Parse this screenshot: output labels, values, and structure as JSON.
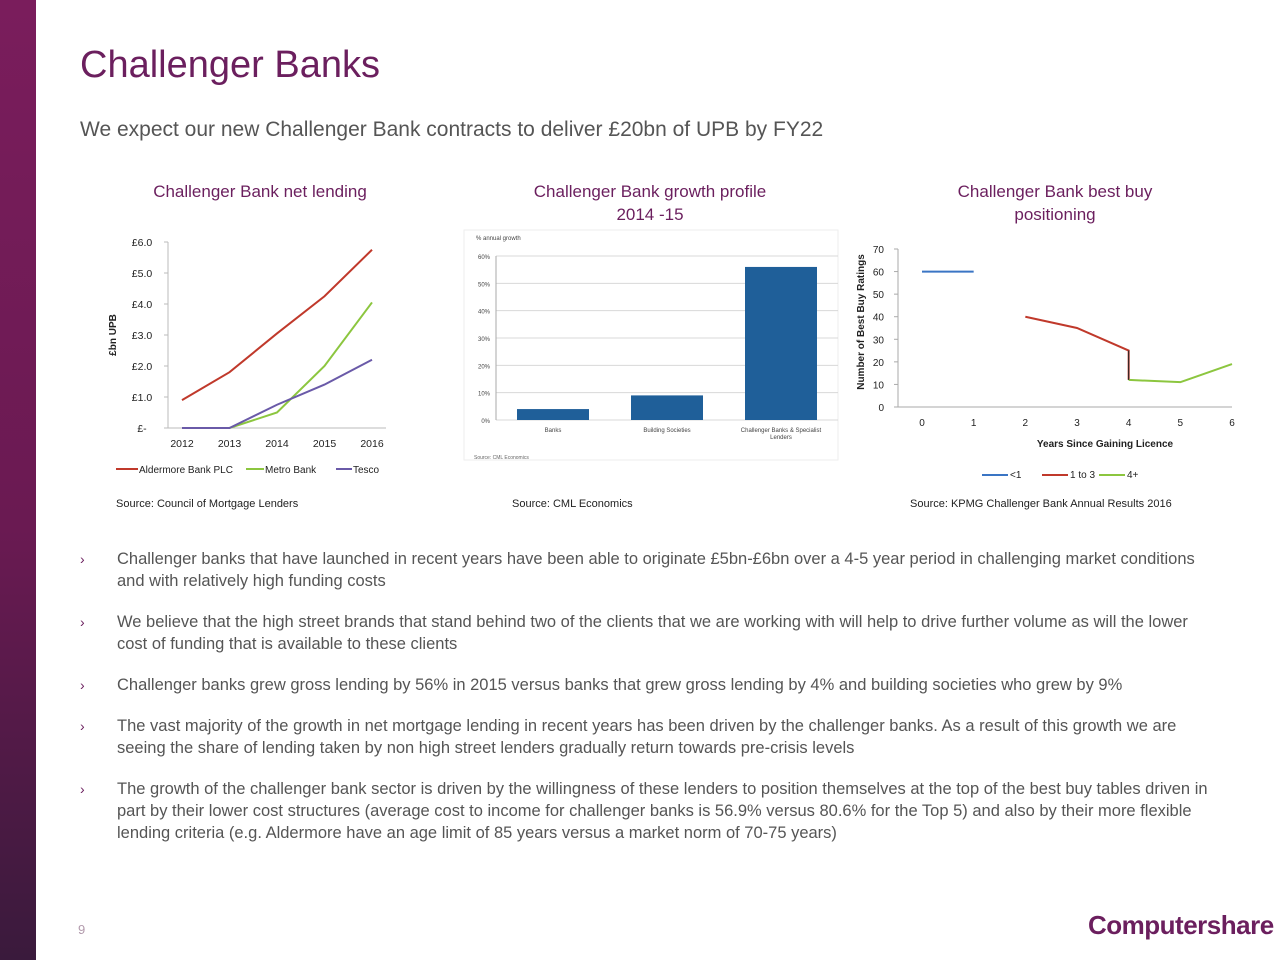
{
  "slide": {
    "title": "Challenger Banks",
    "subtitle": "We expect our new Challenger Bank contracts to deliver £20bn of UPB by FY22",
    "page_number": "9",
    "logo_text": "Computershare",
    "accent_color": "#6b1f5e"
  },
  "charts": {
    "net_lending": {
      "heading": "Challenger Bank net lending",
      "source": "Source: Council of Mortgage Lenders"
    },
    "growth_profile": {
      "heading_line1": "Challenger Bank growth profile",
      "heading_line2": "2014 -15",
      "source": "Source: CML Economics",
      "inner_source": "Source: CML Economics"
    },
    "best_buy": {
      "heading_line1": "Challenger Bank best buy",
      "heading_line2": "positioning",
      "source": "Source: KPMG Challenger Bank Annual Results 2016"
    }
  },
  "chart_data": [
    {
      "type": "line",
      "ylabel": "£bn UPB",
      "x": [
        "2012",
        "2013",
        "2014",
        "2015",
        "2016"
      ],
      "yticks": [
        "£-",
        "£1.0",
        "£2.0",
        "£3.0",
        "£4.0",
        "£5.0",
        "£6.0"
      ],
      "ylim": [
        0,
        6
      ],
      "legend_position": "bottom",
      "series": [
        {
          "name": "Aldermore Bank PLC",
          "color": "#c0392b",
          "values": [
            0.9,
            1.8,
            3.05,
            4.25,
            5.75
          ]
        },
        {
          "name": "Metro Bank",
          "color": "#8cc63f",
          "values": [
            0,
            0,
            0.5,
            2.0,
            4.05
          ]
        },
        {
          "name": "Tesco",
          "color": "#6a5aa8",
          "values": [
            0,
            0,
            0.75,
            1.4,
            2.2
          ]
        }
      ]
    },
    {
      "type": "bar",
      "ylabel": "% annual growth",
      "categories": [
        "Banks",
        "Building Societies",
        "Challenger Banks & Specialist Lenders"
      ],
      "values": [
        4,
        9,
        56
      ],
      "yticks": [
        "0%",
        "10%",
        "20%",
        "30%",
        "40%",
        "50%",
        "60%"
      ],
      "ylim": [
        0,
        60
      ],
      "color": "#1f5f99"
    },
    {
      "type": "line",
      "xlabel": "Years Since Gaining Licence",
      "ylabel": "Number of Best Buy Ratings",
      "xticks": [
        "0",
        "1",
        "2",
        "3",
        "4",
        "5",
        "6"
      ],
      "yticks": [
        "0",
        "10",
        "20",
        "30",
        "40",
        "50",
        "60",
        "70"
      ],
      "xlim": [
        0,
        6
      ],
      "ylim": [
        0,
        70
      ],
      "legend_position": "bottom",
      "series": [
        {
          "name": "<1",
          "color": "#3a75c4",
          "points": [
            [
              0,
              60
            ],
            [
              1,
              60
            ]
          ]
        },
        {
          "name": "1 to 3",
          "color": "#c0392b",
          "points": [
            [
              2,
              40
            ],
            [
              3,
              35
            ],
            [
              4,
              25
            ],
            [
              4,
              12
            ]
          ]
        },
        {
          "name": "4+",
          "color": "#8cc63f",
          "points": [
            [
              4,
              12
            ],
            [
              5,
              11
            ],
            [
              6,
              19
            ]
          ]
        }
      ]
    }
  ],
  "bullets": [
    {
      "marker": "›",
      "text": "Challenger banks that have launched in recent years have been able to originate £5bn-£6bn over a 4-5 year period in challenging market conditions and with relatively high funding costs"
    },
    {
      "marker": "›",
      "text": "We believe that the high street brands that stand behind two of the clients that we are working with will help to drive further volume as will the lower cost of funding that is available to these clients"
    },
    {
      "marker": "›",
      "text": "Challenger banks grew gross lending by 56% in 2015 versus banks that grew gross lending by 4% and building societies who grew by 9%"
    },
    {
      "marker": "›",
      "text": "The vast majority of the growth in net mortgage lending in recent years has been driven by the challenger banks.  As a result of this growth we are seeing the share of lending taken by non high street lenders gradually return towards pre-crisis levels"
    },
    {
      "marker": "›",
      "text": "The growth of the challenger bank sector is driven by the willingness of these lenders to position themselves at the top of the best buy tables driven in part by their lower cost structures (average cost to income for challenger banks is 56.9% versus 80.6% for the Top 5) and also by their more flexible lending criteria (e.g. Aldermore have an age limit of 85 years versus a market norm of 70-75 years)"
    }
  ]
}
